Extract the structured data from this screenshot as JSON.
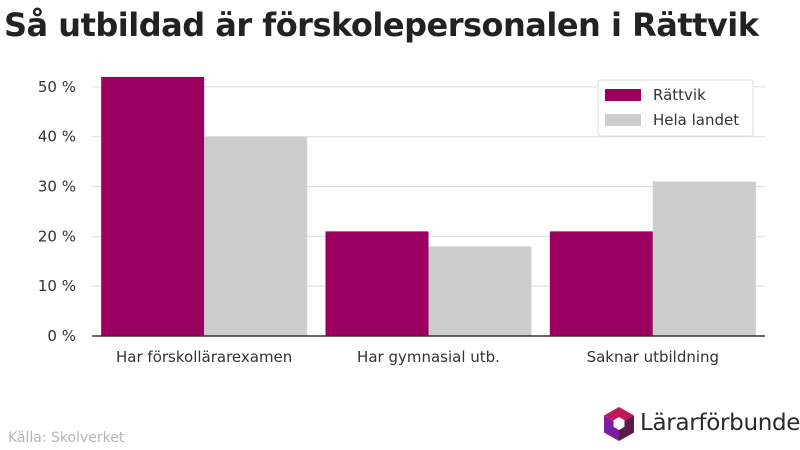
{
  "title": "Så utbildad är förskolepersonalen i Rättvik",
  "source": "Källa: Skolverket",
  "brand": "Lärarförbundet",
  "colors": {
    "primary": "#99005f",
    "secondary": "#cdcdcd",
    "logo_top": "#c2185b",
    "logo_mid": "#7b1fa2",
    "logo_dark": "#5b1a4a"
  },
  "chart_data": {
    "type": "bar",
    "categories": [
      "Har förskollärarexamen",
      "Har gymnasial utb.",
      "Saknar utbildning"
    ],
    "series": [
      {
        "name": "Rättvik",
        "values": [
          52,
          21,
          21
        ]
      },
      {
        "name": "Hela landet",
        "values": [
          40,
          18,
          31
        ]
      }
    ],
    "yticks": [
      "0 %",
      "10 %",
      "20 %",
      "30 %",
      "40 %",
      "50 %"
    ],
    "ylim": [
      0,
      55
    ],
    "grid": true,
    "legend_position": "top-right"
  }
}
